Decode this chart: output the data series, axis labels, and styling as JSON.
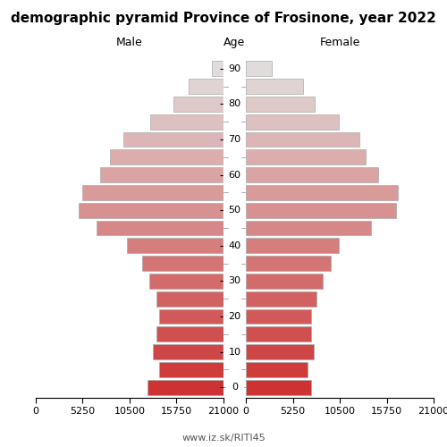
{
  "title": "demographic pyramid Province of Frosinone, year 2022",
  "label_male": "Male",
  "label_female": "Female",
  "label_age": "Age",
  "watermark": "www.iz.sk/RITI45",
  "ages": [
    0,
    5,
    10,
    15,
    20,
    25,
    30,
    35,
    40,
    45,
    50,
    55,
    60,
    65,
    70,
    75,
    80,
    85,
    90
  ],
  "male_vals": [
    8500,
    7200,
    7900,
    7500,
    7200,
    7500,
    8300,
    9100,
    10800,
    14200,
    16200,
    15800,
    13800,
    12700,
    11200,
    8200,
    5600,
    3900,
    1300
  ],
  "female_vals": [
    7300,
    6900,
    7600,
    7300,
    7300,
    7900,
    8600,
    9500,
    10400,
    14000,
    16800,
    17000,
    14800,
    13400,
    12700,
    10400,
    7700,
    6400,
    2900
  ],
  "color_young_r": 0.804,
  "color_young_g": 0.2,
  "color_young_b": 0.2,
  "color_old_r": 0.878,
  "color_old_g": 0.863,
  "color_old_b": 0.863,
  "xlim": 21000,
  "bar_height": 0.85,
  "background": "#ffffff",
  "edge_color": "#aaaaaa",
  "edge_lw": 0.5,
  "title_fontsize": 11,
  "label_fontsize": 9,
  "tick_fontsize": 8,
  "watermark_fontsize": 8,
  "xticks": [
    0,
    5250,
    10500,
    15750,
    21000
  ],
  "age_label_every": 10
}
